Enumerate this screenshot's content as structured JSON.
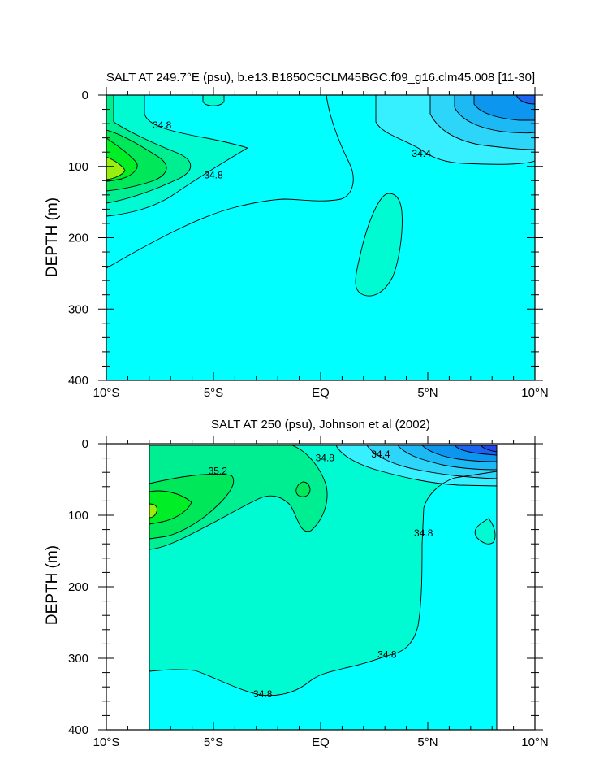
{
  "chart_data": [
    {
      "type": "contour",
      "title": "SALT AT 249.7°E (psu), b.e13.B1850C5CLM45BGC.f09_g16.clm45.008 [11-30]",
      "ylabel": "DEPTH (m)",
      "xlabel": "",
      "xlim": [
        -10,
        10
      ],
      "ylim": [
        0,
        400
      ],
      "y_inverted": true,
      "x_tick_labels": [
        "10°S",
        "5°S",
        "EQ",
        "5°N",
        "10°N"
      ],
      "y_tick_labels": [
        "0",
        "100",
        "200",
        "300",
        "400"
      ],
      "contour_labels": [
        {
          "value": "34.8",
          "lat": -7.4,
          "depth": 42
        },
        {
          "value": "34.8",
          "lat": -5.0,
          "depth": 112
        },
        {
          "value": "34.4",
          "lat": 4.7,
          "depth": 82
        }
      ]
    },
    {
      "type": "contour",
      "title": "SALT AT 250 (psu), Johnson et al (2002)",
      "ylabel": "DEPTH (m)",
      "xlabel": "",
      "xlim": [
        -10,
        10
      ],
      "ylim": [
        0,
        400
      ],
      "y_inverted": true,
      "data_extent_lat": [
        -8,
        8.2
      ],
      "x_tick_labels": [
        "10°S",
        "5°S",
        "EQ",
        "5°N",
        "10°N"
      ],
      "y_tick_labels": [
        "0",
        "100",
        "200",
        "300",
        "400"
      ],
      "contour_labels": [
        {
          "value": "35.2",
          "lat": -4.8,
          "depth": 38
        },
        {
          "value": "34.8",
          "lat": 0.2,
          "depth": 20
        },
        {
          "value": "34.4",
          "lat": 2.8,
          "depth": 15
        },
        {
          "value": "34.8",
          "lat": 4.8,
          "depth": 125
        },
        {
          "value": "34.8",
          "lat": 3.1,
          "depth": 295
        },
        {
          "value": "34.8",
          "lat": -2.7,
          "depth": 350
        }
      ]
    }
  ],
  "colors": {
    "base": "#00ffff",
    "s34_8": "#00fbd2",
    "s35_0": "#00ee92",
    "s35_2": "#00e85a",
    "s35_4": "#00ee25",
    "s35_6": "#99ee10",
    "fresh1": "#36efff",
    "fresh2": "#2dd6f8",
    "fresh3": "#1cb9f5",
    "fresh4": "#0c96f0",
    "fresh5": "#1b63f0",
    "fresh6": "#2544e9"
  }
}
